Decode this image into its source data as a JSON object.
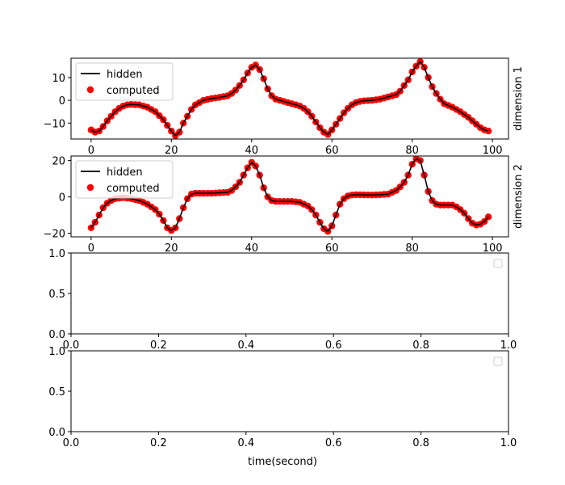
{
  "figure": {
    "xlabel": "time(second)"
  },
  "chart_data": [
    {
      "type": "line+scatter",
      "side_label": "dimension 1",
      "xlim": [
        -5,
        104
      ],
      "ylim": [
        -17,
        18.5
      ],
      "xticks": [
        0,
        20,
        40,
        60,
        80,
        100
      ],
      "yticks": [
        -10,
        0,
        10
      ],
      "legend": {
        "placement": "upper-left",
        "entries": [
          "hidden",
          "computed"
        ]
      },
      "series": [
        {
          "name": "hidden",
          "kind": "line",
          "color": "#000000"
        },
        {
          "name": "computed",
          "kind": "scatter",
          "color": "#ff0000"
        }
      ],
      "keypoints": [
        [
          0,
          -13
        ],
        [
          1,
          -14
        ],
        [
          2,
          -13.5
        ],
        [
          3,
          -11.5
        ],
        [
          4,
          -9
        ],
        [
          5,
          -7
        ],
        [
          6,
          -5
        ],
        [
          7,
          -3.5
        ],
        [
          8,
          -2.5
        ],
        [
          9,
          -2
        ],
        [
          10,
          -1.8
        ],
        [
          12,
          -2
        ],
        [
          14,
          -3
        ],
        [
          16,
          -5
        ],
        [
          18,
          -8.5
        ],
        [
          19,
          -11
        ],
        [
          20,
          -13.5
        ],
        [
          21,
          -15.5
        ],
        [
          22,
          -14
        ],
        [
          23,
          -10
        ],
        [
          24,
          -7
        ],
        [
          25,
          -4
        ],
        [
          26,
          -2
        ],
        [
          27,
          -1
        ],
        [
          28,
          0
        ],
        [
          30,
          0.8
        ],
        [
          32,
          1.3
        ],
        [
          34,
          2
        ],
        [
          35,
          3
        ],
        [
          36,
          4.5
        ],
        [
          37,
          6.5
        ],
        [
          38,
          9
        ],
        [
          39,
          12
        ],
        [
          40,
          14.5
        ],
        [
          41,
          15.5
        ],
        [
          42,
          13.5
        ],
        [
          43,
          9.5
        ],
        [
          44,
          5
        ],
        [
          45,
          2
        ],
        [
          46,
          0.5
        ],
        [
          48,
          -0.5
        ],
        [
          50,
          -1.5
        ],
        [
          52,
          -2.5
        ],
        [
          53,
          -3.5
        ],
        [
          54,
          -5
        ],
        [
          55,
          -7
        ],
        [
          56,
          -9.5
        ],
        [
          57,
          -12
        ],
        [
          58,
          -14
        ],
        [
          59,
          -15
        ],
        [
          60,
          -13
        ],
        [
          61,
          -10.5
        ],
        [
          62,
          -8
        ],
        [
          63,
          -5.5
        ],
        [
          64,
          -3.5
        ],
        [
          65,
          -2
        ],
        [
          66,
          -1
        ],
        [
          67,
          -0.5
        ],
        [
          68,
          -0.2
        ],
        [
          70,
          0
        ],
        [
          72,
          0.5
        ],
        [
          74,
          1.5
        ],
        [
          76,
          2.5
        ],
        [
          77,
          4
        ],
        [
          78,
          6.5
        ],
        [
          79,
          9
        ],
        [
          80,
          12.5
        ],
        [
          81,
          15
        ],
        [
          82,
          17
        ],
        [
          83,
          14.5
        ],
        [
          84,
          10
        ],
        [
          85,
          6
        ],
        [
          86,
          3
        ],
        [
          87,
          0.5
        ],
        [
          88,
          -1.5
        ],
        [
          90,
          -3
        ],
        [
          92,
          -5
        ],
        [
          94,
          -7.5
        ],
        [
          96,
          -10.5
        ],
        [
          97,
          -12
        ],
        [
          98,
          -13
        ],
        [
          99,
          -13.5
        ]
      ]
    },
    {
      "type": "line+scatter",
      "side_label": "dimension 2",
      "xlim": [
        -5,
        104
      ],
      "ylim": [
        -22,
        22.5
      ],
      "xticks": [
        0,
        20,
        40,
        60,
        80,
        100
      ],
      "yticks": [
        -20,
        0,
        20
      ],
      "legend": {
        "placement": "upper-left",
        "entries": [
          "hidden",
          "computed"
        ]
      },
      "series": [
        {
          "name": "hidden",
          "kind": "line",
          "color": "#000000"
        },
        {
          "name": "computed",
          "kind": "scatter",
          "color": "#ff0000"
        }
      ],
      "keypoints": [
        [
          0,
          -17
        ],
        [
          1,
          -14
        ],
        [
          2,
          -10
        ],
        [
          3,
          -6
        ],
        [
          4,
          -3.5
        ],
        [
          5,
          -2
        ],
        [
          6,
          -1
        ],
        [
          8,
          -0.5
        ],
        [
          10,
          -1
        ],
        [
          12,
          -2
        ],
        [
          14,
          -4
        ],
        [
          16,
          -7
        ],
        [
          17,
          -9.5
        ],
        [
          18,
          -13
        ],
        [
          19,
          -17
        ],
        [
          20,
          -18.5
        ],
        [
          21,
          -17
        ],
        [
          22,
          -12
        ],
        [
          23,
          -6
        ],
        [
          24,
          -1
        ],
        [
          25,
          1.5
        ],
        [
          26,
          2
        ],
        [
          30,
          2
        ],
        [
          34,
          2.5
        ],
        [
          35,
          3.5
        ],
        [
          36,
          5.5
        ],
        [
          37,
          8
        ],
        [
          38,
          12
        ],
        [
          39,
          16
        ],
        [
          40,
          19
        ],
        [
          41,
          17
        ],
        [
          42,
          12
        ],
        [
          43,
          5
        ],
        [
          44,
          0
        ],
        [
          45,
          -2
        ],
        [
          46,
          -2.5
        ],
        [
          50,
          -2.5
        ],
        [
          52,
          -3
        ],
        [
          54,
          -5
        ],
        [
          55,
          -7
        ],
        [
          56,
          -10
        ],
        [
          57,
          -14
        ],
        [
          58,
          -17.5
        ],
        [
          59,
          -19
        ],
        [
          60,
          -16
        ],
        [
          61,
          -10
        ],
        [
          62,
          -4
        ],
        [
          63,
          -1
        ],
        [
          64,
          0.5
        ],
        [
          65,
          1
        ],
        [
          66,
          1.2
        ],
        [
          70,
          1
        ],
        [
          72,
          1.2
        ],
        [
          74,
          1.5
        ],
        [
          75,
          2.5
        ],
        [
          76,
          3.5
        ],
        [
          77,
          5.5
        ],
        [
          78,
          8
        ],
        [
          79,
          12
        ],
        [
          80,
          18
        ],
        [
          81,
          21
        ],
        [
          82,
          20
        ],
        [
          83,
          12
        ],
        [
          84,
          3
        ],
        [
          85,
          -2
        ],
        [
          86,
          -4
        ],
        [
          87,
          -4.5
        ],
        [
          90,
          -4.5
        ],
        [
          91,
          -5.5
        ],
        [
          92,
          -7
        ],
        [
          93,
          -9
        ],
        [
          94,
          -12
        ],
        [
          95,
          -14.5
        ],
        [
          96,
          -15.5
        ],
        [
          97,
          -15
        ],
        [
          98,
          -13.5
        ],
        [
          99,
          -11
        ]
      ]
    },
    {
      "type": "empty",
      "xlim": [
        0,
        1
      ],
      "ylim": [
        0,
        1
      ],
      "xticks": [
        "0.0",
        "0.2",
        "0.4",
        "0.6",
        "0.8",
        "1.0"
      ],
      "yticks": [
        "0.0",
        "0.5",
        "1.0"
      ],
      "legend": {
        "placement": "upper-right",
        "entries": []
      }
    },
    {
      "type": "empty",
      "xlim": [
        0,
        1
      ],
      "ylim": [
        0,
        1
      ],
      "xticks": [
        "0.0",
        "0.2",
        "0.4",
        "0.6",
        "0.8",
        "1.0"
      ],
      "yticks": [
        "0.0",
        "0.5",
        "1.0"
      ],
      "legend": {
        "placement": "upper-right",
        "entries": []
      }
    }
  ]
}
